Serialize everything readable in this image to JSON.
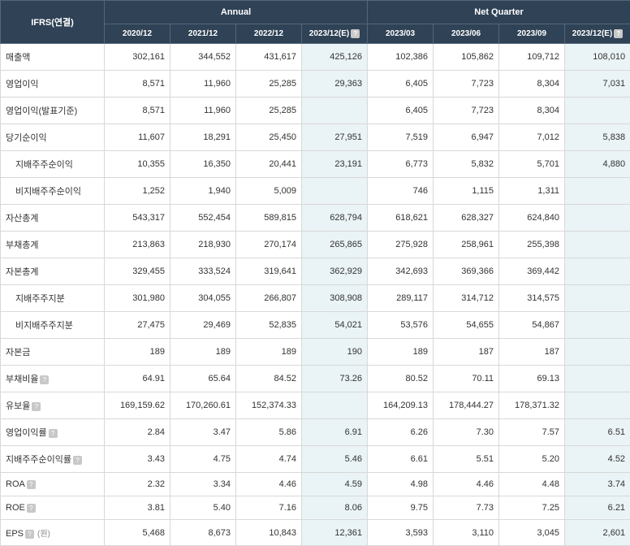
{
  "header": {
    "corner": "IFRS(연결)",
    "group1": "Annual",
    "group2": "Net Quarter"
  },
  "periods": [
    "2020/12",
    "2021/12",
    "2022/12",
    "2023/12(E)",
    "2023/03",
    "2023/06",
    "2023/09",
    "2023/12(E)"
  ],
  "estimateCols": [
    3,
    7
  ],
  "rows": [
    {
      "label": "매출액",
      "v": [
        "302,161",
        "344,552",
        "431,617",
        "425,126",
        "102,386",
        "105,862",
        "109,712",
        "108,010"
      ]
    },
    {
      "label": "영업이익",
      "v": [
        "8,571",
        "11,960",
        "25,285",
        "29,363",
        "6,405",
        "7,723",
        "8,304",
        "7,031"
      ]
    },
    {
      "label": "영업이익(발표기준)",
      "v": [
        "8,571",
        "11,960",
        "25,285",
        "",
        "6,405",
        "7,723",
        "8,304",
        ""
      ]
    },
    {
      "label": "당기순이익",
      "v": [
        "11,607",
        "18,291",
        "25,450",
        "27,951",
        "7,519",
        "6,947",
        "7,012",
        "5,838"
      ]
    },
    {
      "label": "지배주주순이익",
      "indent": true,
      "v": [
        "10,355",
        "16,350",
        "20,441",
        "23,191",
        "6,773",
        "5,832",
        "5,701",
        "4,880"
      ]
    },
    {
      "label": "비지배주주순이익",
      "indent": true,
      "v": [
        "1,252",
        "1,940",
        "5,009",
        "",
        "746",
        "1,115",
        "1,311",
        ""
      ]
    },
    {
      "label": "자산총계",
      "v": [
        "543,317",
        "552,454",
        "589,815",
        "628,794",
        "618,621",
        "628,327",
        "624,840",
        ""
      ]
    },
    {
      "label": "부채총계",
      "v": [
        "213,863",
        "218,930",
        "270,174",
        "265,865",
        "275,928",
        "258,961",
        "255,398",
        ""
      ]
    },
    {
      "label": "자본총계",
      "v": [
        "329,455",
        "333,524",
        "319,641",
        "362,929",
        "342,693",
        "369,366",
        "369,442",
        ""
      ]
    },
    {
      "label": "지배주주지분",
      "indent": true,
      "v": [
        "301,980",
        "304,055",
        "266,807",
        "308,908",
        "289,117",
        "314,712",
        "314,575",
        ""
      ]
    },
    {
      "label": "비지배주주지분",
      "indent": true,
      "v": [
        "27,475",
        "29,469",
        "52,835",
        "54,021",
        "53,576",
        "54,655",
        "54,867",
        ""
      ]
    },
    {
      "label": "자본금",
      "v": [
        "189",
        "189",
        "189",
        "190",
        "189",
        "187",
        "187",
        ""
      ]
    },
    {
      "label": "부채비율",
      "help": true,
      "v": [
        "64.91",
        "65.64",
        "84.52",
        "73.26",
        "80.52",
        "70.11",
        "69.13",
        ""
      ]
    },
    {
      "label": "유보율",
      "help": true,
      "v": [
        "169,159.62",
        "170,260.61",
        "152,374.33",
        "",
        "164,209.13",
        "178,444.27",
        "178,371.32",
        ""
      ]
    },
    {
      "label": "영업이익률",
      "help": true,
      "v": [
        "2.84",
        "3.47",
        "5.86",
        "6.91",
        "6.26",
        "7.30",
        "7.57",
        "6.51"
      ]
    },
    {
      "label": "지배주주순이익률",
      "help": true,
      "v": [
        "3.43",
        "4.75",
        "4.74",
        "5.46",
        "6.61",
        "5.51",
        "5.20",
        "4.52"
      ]
    },
    {
      "label": "ROA",
      "help": true,
      "v": [
        "2.32",
        "3.34",
        "4.46",
        "4.59",
        "4.98",
        "4.46",
        "4.48",
        "3.74"
      ]
    },
    {
      "label": "ROE",
      "help": true,
      "v": [
        "3.81",
        "5.40",
        "7.16",
        "8.06",
        "9.75",
        "7.73",
        "7.25",
        "6.21"
      ]
    },
    {
      "label": "EPS",
      "help": true,
      "unit": "(원)",
      "v": [
        "5,468",
        "8,673",
        "10,843",
        "12,361",
        "3,593",
        "3,110",
        "3,045",
        "2,601"
      ]
    }
  ],
  "helpMark": "?"
}
